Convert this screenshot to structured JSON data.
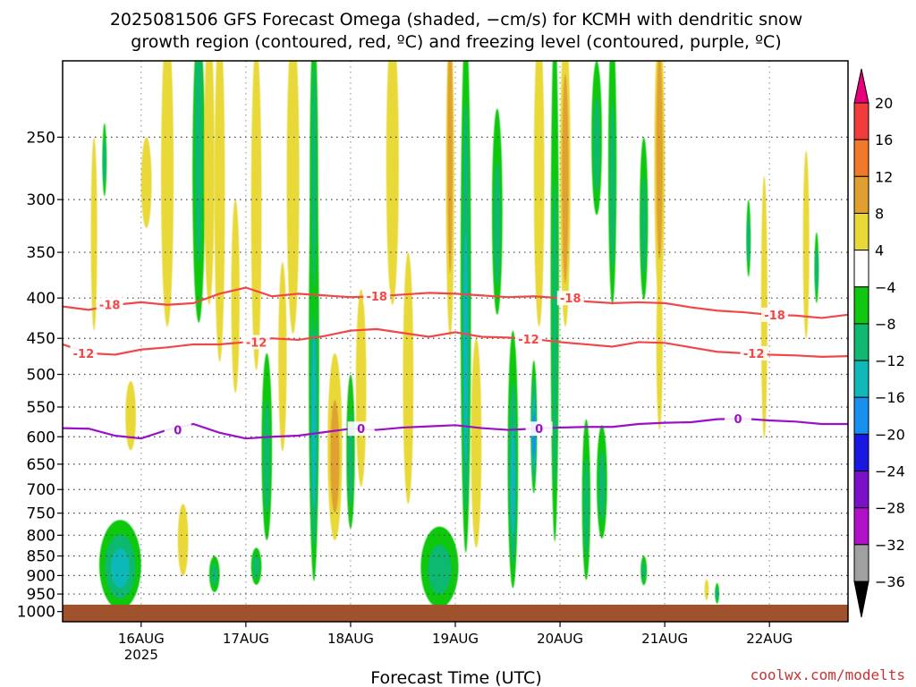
{
  "chart_data": {
    "type": "heatmap",
    "title_line1": "2025081506 GFS Forecast Omega (shaded, −cm/s) for KCMH with dendritic snow",
    "title_line2": "growth region (contoured, red, ºC) and freezing level (contoured, purple, ºC)",
    "xlabel": "Forecast Time (UTC)",
    "ylabel": "",
    "credit": "coolwx.com/modelts",
    "x_axis": {
      "ticks": [
        {
          "label": "16AUG",
          "sub": "2025",
          "day": 1
        },
        {
          "label": "17AUG",
          "sub": "",
          "day": 2
        },
        {
          "label": "18AUG",
          "sub": "",
          "day": 3
        },
        {
          "label": "19AUG",
          "sub": "",
          "day": 4
        },
        {
          "label": "20AUG",
          "sub": "",
          "day": 5
        },
        {
          "label": "21AUG",
          "sub": "",
          "day": 6
        },
        {
          "label": "22AUG",
          "sub": "",
          "day": 7
        }
      ],
      "range_days": [
        0.25,
        7.75
      ]
    },
    "y_axis": {
      "scale": "log",
      "range_hpa": [
        1030,
        200
      ],
      "ticks": [
        "250",
        "300",
        "350",
        "400",
        "450",
        "500",
        "550",
        "600",
        "650",
        "700",
        "750",
        "800",
        "850",
        "900",
        "950",
        "1000"
      ],
      "grid": true
    },
    "colorbar": {
      "labels": [
        "20",
        "16",
        "12",
        "8",
        "4",
        "−4",
        "−8",
        "−12",
        "−16",
        "−20",
        "−24",
        "−28",
        "−32",
        "−36"
      ],
      "colors": [
        "#e8007a",
        "#f03c3c",
        "#f07a28",
        "#e0a030",
        "#e8d838",
        "#ffffff",
        "#10c810",
        "#10b870",
        "#10b8b8",
        "#1890f0",
        "#1818e0",
        "#7a10c8",
        "#b010c8",
        "#a0a0a0",
        "#000000"
      ]
    },
    "omega_blobs": [
      {
        "day": 0.8,
        "p": 890,
        "v": -22,
        "dx": 0.12,
        "dp": 60
      },
      {
        "day": 0.8,
        "p": 885,
        "v": -14,
        "dx": 0.2,
        "dp": 120
      },
      {
        "day": 3.85,
        "p": 895,
        "v": -18,
        "dx": 0.1,
        "dp": 60
      },
      {
        "day": 3.85,
        "p": 890,
        "v": -10,
        "dx": 0.18,
        "dp": 110
      },
      {
        "day": 1.05,
        "p": 290,
        "v": 5,
        "dx": 0.05,
        "dp": 40
      },
      {
        "day": 1.25,
        "p": 300,
        "v": 5,
        "dx": 0.06,
        "dp": 150
      },
      {
        "day": 1.55,
        "p": 250,
        "v": -8,
        "dx": 0.06,
        "dp": 200
      },
      {
        "day": 1.65,
        "p": 300,
        "v": 5,
        "dx": 0.05,
        "dp": 120
      },
      {
        "day": 1.75,
        "p": 320,
        "v": 7,
        "dx": 0.05,
        "dp": 180
      },
      {
        "day": 1.9,
        "p": 420,
        "v": 5,
        "dx": 0.04,
        "dp": 120
      },
      {
        "day": 2.1,
        "p": 350,
        "v": 7,
        "dx": 0.05,
        "dp": 160
      },
      {
        "day": 2.2,
        "p": 650,
        "v": -8,
        "dx": 0.05,
        "dp": 180
      },
      {
        "day": 2.35,
        "p": 500,
        "v": 5,
        "dx": 0.04,
        "dp": 140
      },
      {
        "day": 2.45,
        "p": 300,
        "v": 6,
        "dx": 0.06,
        "dp": 160
      },
      {
        "day": 2.65,
        "p": 600,
        "v": -14,
        "dx": 0.05,
        "dp": 350
      },
      {
        "day": 2.65,
        "p": 300,
        "v": -10,
        "dx": 0.04,
        "dp": 160
      },
      {
        "day": 2.85,
        "p": 700,
        "v": 16,
        "dx": 0.05,
        "dp": 90
      },
      {
        "day": 2.85,
        "p": 650,
        "v": 8,
        "dx": 0.07,
        "dp": 180
      },
      {
        "day": 3.0,
        "p": 650,
        "v": -8,
        "dx": 0.04,
        "dp": 150
      },
      {
        "day": 3.1,
        "p": 550,
        "v": 6,
        "dx": 0.05,
        "dp": 160
      },
      {
        "day": 3.4,
        "p": 300,
        "v": 6,
        "dx": 0.06,
        "dp": 120
      },
      {
        "day": 3.55,
        "p": 550,
        "v": 5,
        "dx": 0.05,
        "dp": 200
      },
      {
        "day": 3.95,
        "p": 250,
        "v": 10,
        "dx": 0.04,
        "dp": 220
      },
      {
        "day": 4.1,
        "p": 500,
        "v": -14,
        "dx": 0.05,
        "dp": 380
      },
      {
        "day": 4.2,
        "p": 650,
        "v": 6,
        "dx": 0.05,
        "dp": 200
      },
      {
        "day": 4.4,
        "p": 330,
        "v": -8,
        "dx": 0.05,
        "dp": 100
      },
      {
        "day": 4.55,
        "p": 700,
        "v": -12,
        "dx": 0.05,
        "dp": 260
      },
      {
        "day": 4.75,
        "p": 600,
        "v": -16,
        "dx": 0.03,
        "dp": 120
      },
      {
        "day": 4.8,
        "p": 300,
        "v": 6,
        "dx": 0.05,
        "dp": 150
      },
      {
        "day": 4.95,
        "p": 500,
        "v": -10,
        "dx": 0.04,
        "dp": 350
      },
      {
        "day": 5.05,
        "p": 300,
        "v": 10,
        "dx": 0.05,
        "dp": 150
      },
      {
        "day": 5.25,
        "p": 750,
        "v": -8,
        "dx": 0.04,
        "dp": 180
      },
      {
        "day": 5.35,
        "p": 260,
        "v": -8,
        "dx": 0.05,
        "dp": 60
      },
      {
        "day": 5.5,
        "p": 300,
        "v": -8,
        "dx": 0.04,
        "dp": 120
      },
      {
        "day": 5.8,
        "p": 330,
        "v": -8,
        "dx": 0.04,
        "dp": 80
      },
      {
        "day": 5.95,
        "p": 280,
        "v": 10,
        "dx": 0.05,
        "dp": 140
      },
      {
        "day": 5.95,
        "p": 480,
        "v": 5,
        "dx": 0.03,
        "dp": 120
      },
      {
        "day": 5.4,
        "p": 700,
        "v": -8,
        "dx": 0.05,
        "dp": 120
      },
      {
        "day": 6.5,
        "p": 950,
        "v": -8,
        "dx": 0.02,
        "dp": 30
      },
      {
        "day": 6.4,
        "p": 940,
        "v": 5,
        "dx": 0.02,
        "dp": 30
      },
      {
        "day": 6.95,
        "p": 450,
        "v": 5,
        "dx": 0.03,
        "dp": 170
      },
      {
        "day": 6.8,
        "p": 340,
        "v": -8,
        "dx": 0.02,
        "dp": 40
      },
      {
        "day": 7.45,
        "p": 370,
        "v": -8,
        "dx": 0.02,
        "dp": 40
      },
      {
        "day": 7.35,
        "p": 360,
        "v": 5,
        "dx": 0.03,
        "dp": 100
      },
      {
        "day": 0.55,
        "p": 350,
        "v": 5,
        "dx": 0.03,
        "dp": 100
      },
      {
        "day": 0.65,
        "p": 270,
        "v": -8,
        "dx": 0.02,
        "dp": 30
      },
      {
        "day": 0.9,
        "p": 570,
        "v": 5,
        "dx": 0.05,
        "dp": 60
      },
      {
        "day": 1.7,
        "p": 900,
        "v": -8,
        "dx": 0.05,
        "dp": 50
      },
      {
        "day": 2.1,
        "p": 880,
        "v": -8,
        "dx": 0.05,
        "dp": 50
      },
      {
        "day": 1.4,
        "p": 820,
        "v": 5,
        "dx": 0.05,
        "dp": 90
      },
      {
        "day": 5.8,
        "p": 890,
        "v": -8,
        "dx": 0.03,
        "dp": 40
      }
    ],
    "contours": [
      {
        "label": "-18",
        "color": "#f04848",
        "points": [
          [
            0.25,
            410
          ],
          [
            0.5,
            414
          ],
          [
            0.75,
            408
          ],
          [
            1.0,
            405
          ],
          [
            1.25,
            408
          ],
          [
            1.5,
            406
          ],
          [
            1.75,
            395
          ],
          [
            2.0,
            388
          ],
          [
            2.25,
            398
          ],
          [
            2.5,
            395
          ],
          [
            2.75,
            397
          ],
          [
            3.0,
            399
          ],
          [
            3.25,
            398
          ],
          [
            3.5,
            396
          ],
          [
            3.75,
            394
          ],
          [
            4.0,
            395
          ],
          [
            4.25,
            397
          ],
          [
            4.5,
            399
          ],
          [
            4.75,
            398
          ],
          [
            5.0,
            400
          ],
          [
            5.25,
            404
          ],
          [
            5.5,
            406
          ],
          [
            5.75,
            405
          ],
          [
            6.0,
            406
          ],
          [
            6.25,
            411
          ],
          [
            6.5,
            415
          ],
          [
            6.75,
            417
          ],
          [
            7.0,
            420
          ],
          [
            7.25,
            421
          ],
          [
            7.5,
            424
          ],
          [
            7.75,
            420
          ]
        ],
        "label_days": [
          0.7,
          3.25,
          5.1,
          7.05
        ]
      },
      {
        "label": "-12",
        "color": "#f04848",
        "points": [
          [
            0.25,
            458
          ],
          [
            0.5,
            470
          ],
          [
            0.75,
            472
          ],
          [
            1.0,
            465
          ],
          [
            1.25,
            462
          ],
          [
            1.5,
            458
          ],
          [
            1.75,
            458
          ],
          [
            2.0,
            455
          ],
          [
            2.25,
            450
          ],
          [
            2.5,
            452
          ],
          [
            2.75,
            447
          ],
          [
            3.0,
            440
          ],
          [
            3.25,
            438
          ],
          [
            3.5,
            443
          ],
          [
            3.75,
            448
          ],
          [
            4.0,
            442
          ],
          [
            4.25,
            448
          ],
          [
            4.5,
            449
          ],
          [
            4.75,
            451
          ],
          [
            5.0,
            455
          ],
          [
            5.25,
            458
          ],
          [
            5.5,
            461
          ],
          [
            5.75,
            455
          ],
          [
            6.0,
            456
          ],
          [
            6.25,
            462
          ],
          [
            6.5,
            468
          ],
          [
            6.75,
            470
          ],
          [
            7.0,
            472
          ],
          [
            7.25,
            473
          ],
          [
            7.5,
            475
          ],
          [
            7.75,
            474
          ]
        ],
        "label_days": [
          0.45,
          2.1,
          4.7,
          6.85
        ]
      },
      {
        "label": "0",
        "color": "#9a10c8",
        "points": [
          [
            0.25,
            585
          ],
          [
            0.5,
            586
          ],
          [
            0.75,
            598
          ],
          [
            1.0,
            603
          ],
          [
            1.25,
            588
          ],
          [
            1.5,
            578
          ],
          [
            1.75,
            593
          ],
          [
            2.0,
            603
          ],
          [
            2.25,
            600
          ],
          [
            2.5,
            598
          ],
          [
            2.75,
            592
          ],
          [
            3.0,
            586
          ],
          [
            3.25,
            588
          ],
          [
            3.5,
            584
          ],
          [
            3.75,
            582
          ],
          [
            4.0,
            580
          ],
          [
            4.25,
            585
          ],
          [
            4.5,
            588
          ],
          [
            4.75,
            586
          ],
          [
            5.0,
            584
          ],
          [
            5.25,
            583
          ],
          [
            5.5,
            583
          ],
          [
            5.75,
            578
          ],
          [
            6.0,
            576
          ],
          [
            6.25,
            575
          ],
          [
            6.5,
            570
          ],
          [
            6.75,
            569
          ],
          [
            7.0,
            572
          ],
          [
            7.25,
            574
          ],
          [
            7.5,
            578
          ],
          [
            7.75,
            578
          ]
        ],
        "label_days": [
          1.35,
          3.1,
          4.8,
          6.7
        ]
      }
    ],
    "ground_hpa": 980
  }
}
